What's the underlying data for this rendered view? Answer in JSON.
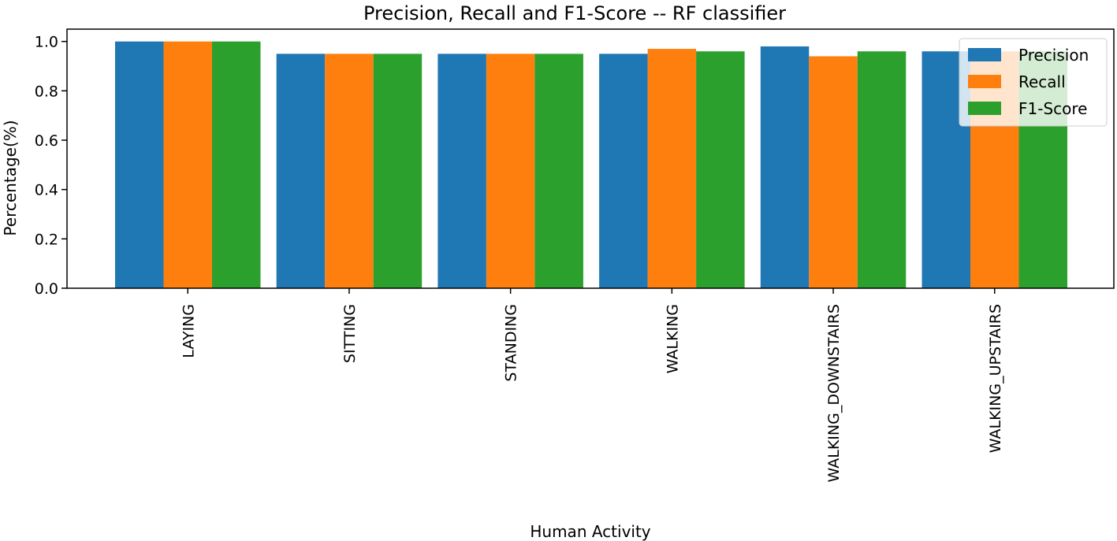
{
  "chart_data": {
    "type": "bar",
    "title": "Precision, Recall and F1-Score -- RF classifier",
    "xlabel": "Human Activity",
    "ylabel": "Percentage(%)",
    "ylim": [
      0,
      1.05
    ],
    "yticks": [
      "0.0",
      "0.2",
      "0.4",
      "0.6",
      "0.8",
      "1.0"
    ],
    "ytick_values": [
      0,
      0.2,
      0.4,
      0.6,
      0.8,
      1.0
    ],
    "categories": [
      "LAYING",
      "SITTING",
      "STANDING",
      "WALKING",
      "WALKING_DOWNSTAIRS",
      "WALKING_UPSTAIRS"
    ],
    "series": [
      {
        "name": "Precision",
        "color": "#1f77b4",
        "values": [
          1.0,
          0.95,
          0.95,
          0.95,
          0.98,
          0.96
        ]
      },
      {
        "name": "Recall",
        "color": "#ff7f0e",
        "values": [
          1.0,
          0.95,
          0.95,
          0.97,
          0.94,
          0.96
        ]
      },
      {
        "name": "F1-Score",
        "color": "#2ca02c",
        "values": [
          1.0,
          0.95,
          0.95,
          0.96,
          0.96,
          0.96
        ]
      }
    ],
    "legend_position": "upper right",
    "grid": false
  }
}
